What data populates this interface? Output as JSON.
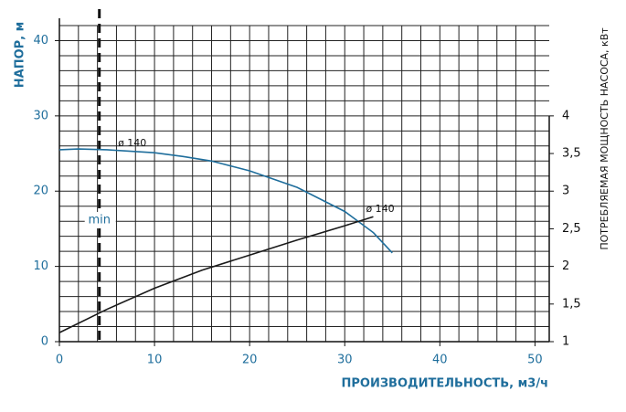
{
  "chart_data": {
    "type": "line",
    "x_label": "ПРОИЗВОДИТЕЛЬНОСТЬ, м3/ч",
    "y_label": "НАПОР, м",
    "y2_label": "ПОТРЕБЛЯЕМАЯ МОЩНОСТЬ НАСОСА, кВт",
    "xlim": [
      0,
      51.5
    ],
    "xticks": [
      0,
      10,
      20,
      30,
      40,
      50
    ],
    "ylim": [
      0,
      42
    ],
    "yticks": [
      0,
      10,
      20,
      30,
      40
    ],
    "y2lim": [
      1,
      5.2
    ],
    "y2ticks": [
      1,
      {
        "value": 1.5,
        "label": "1,5"
      },
      2,
      {
        "value": 2.5,
        "label": "2,5"
      },
      3,
      {
        "value": 3.5,
        "label": "3,5"
      },
      4
    ],
    "grid": true,
    "series": [
      {
        "name": "ø 140",
        "color": "#1f6e9c",
        "axis": "y",
        "x": [
          0,
          2,
          5,
          10,
          13,
          16,
          20,
          25,
          30,
          33,
          35
        ],
        "values": [
          25.5,
          25.6,
          25.5,
          25.1,
          24.6,
          24,
          22.7,
          20.5,
          17.3,
          14.5,
          11.8
        ]
      },
      {
        "name": "ø 140",
        "color": "#1a1a1a",
        "axis": "y2",
        "x": [
          0,
          5,
          10,
          15,
          20,
          25,
          30,
          33
        ],
        "values": [
          1.12,
          1.43,
          1.71,
          1.95,
          2.15,
          2.35,
          2.54,
          2.66
        ]
      }
    ],
    "annotation": {
      "text": "min",
      "x": 4.2
    }
  }
}
